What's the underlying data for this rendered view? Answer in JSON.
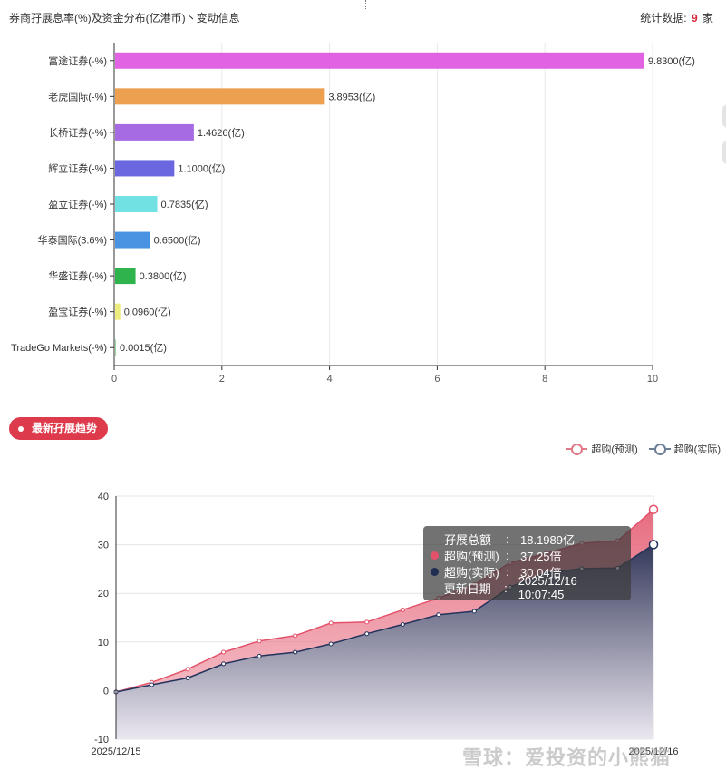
{
  "header": {
    "title": "券商孖展息率(%)及资金分布(亿港币)丶变动信息",
    "stat_prefix": "统计数据:",
    "stat_count": "9",
    "stat_suffix": "家"
  },
  "trend_section": {
    "button_label": "最新孖展趋势"
  },
  "tooltip": {
    "rows": [
      {
        "label": "孖展总额",
        "colon": ":",
        "value": "18.1989亿",
        "marker": ""
      },
      {
        "label": "超购(预测)",
        "colon": ":",
        "value": "37.25倍",
        "marker": "#e3526a"
      },
      {
        "label": "超购(实际)",
        "colon": ":",
        "value": "30.04倍",
        "marker": "#1f2d52"
      },
      {
        "label": "更新日期",
        "colon": ":",
        "value": "2025/12/16 10:07:45",
        "marker": ""
      }
    ]
  },
  "watermark": "雪球：爱投资的小熊猫",
  "colors": {
    "accent_red": "#dd3b4c",
    "predicted": "#e3526a",
    "actual": "#3b4f70"
  },
  "chart_data": [
    {
      "type": "bar",
      "orientation": "horizontal",
      "categories": [
        "富途证券(-%)",
        "老虎国际(-%)",
        "长桥证券(-%)",
        "辉立证券(-%)",
        "盈立证券(-%)",
        "华泰国际(3.6%)",
        "华盛证券(-%)",
        "盈宝证券(-%)",
        "TradeGo Markets(-%)"
      ],
      "values": [
        9.83,
        3.8953,
        1.4626,
        1.1,
        0.7835,
        0.65,
        0.38,
        0.096,
        0.0015
      ],
      "data_labels": [
        "9.8300(亿)",
        "3.8953(亿)",
        "1.4626(亿)",
        "1.1000(亿)",
        "0.7835(亿)",
        "0.6500(亿)",
        "0.3800(亿)",
        "0.0960(亿)",
        "0.0015(亿)"
      ],
      "bar_colors": [
        "#e163e3",
        "#eca050",
        "#a66be3",
        "#6a67e0",
        "#72e1e4",
        "#4a93e3",
        "#2fb34c",
        "#ecec7f",
        "#9ad6a0"
      ],
      "xlim": [
        0,
        10
      ],
      "xticks": [
        "0",
        "2",
        "4",
        "6",
        "8",
        "10"
      ],
      "grid": true
    },
    {
      "type": "area",
      "xlabels_shown": [
        "2025/12/15",
        "2025/12/16"
      ],
      "ylim": [
        -10,
        40
      ],
      "yticks": [
        "-10",
        "0",
        "10",
        "20",
        "30",
        "40"
      ],
      "grid": true,
      "legend_position": "top-right",
      "series": [
        {
          "name": "超购(预测)",
          "values": [
            -0.3,
            1.7,
            4.4,
            7.9,
            10.2,
            11.3,
            13.9,
            14.1,
            16.6,
            19.0,
            21.8,
            26.3,
            28.2,
            30.3,
            30.8,
            37.25
          ]
        },
        {
          "name": "超购(实际)",
          "values": [
            -0.3,
            1.2,
            2.6,
            5.5,
            7.1,
            7.9,
            9.6,
            11.7,
            13.6,
            15.6,
            16.3,
            21.3,
            24.2,
            25.1,
            25.2,
            30.04
          ]
        }
      ]
    }
  ]
}
